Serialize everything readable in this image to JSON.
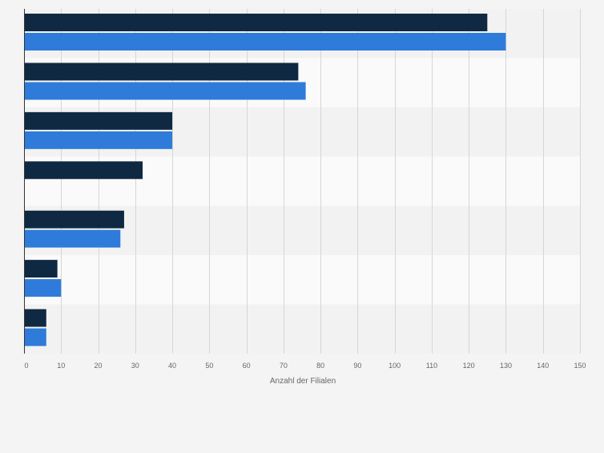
{
  "chart_data": {
    "type": "bar",
    "orientation": "horizontal",
    "categories": [
      "",
      "",
      "",
      "",
      "",
      "",
      ""
    ],
    "series": [
      {
        "color": "#0f2942",
        "values": [
          125,
          74,
          40,
          32,
          27,
          9,
          6
        ]
      },
      {
        "color": "#2f7bd9",
        "values": [
          130,
          76,
          40,
          null,
          26,
          10,
          6
        ]
      }
    ],
    "xlim": [
      0,
      150
    ],
    "xticks": [
      0,
      10,
      20,
      30,
      40,
      50,
      60,
      70,
      80,
      90,
      100,
      110,
      120,
      130,
      140,
      150
    ],
    "xlabel": "Anzahl der Filialen",
    "ylabel": "",
    "title": "",
    "grid": true,
    "legend": "none"
  },
  "colors": {
    "background": "#f4f4f4",
    "band_light": "#fafafa",
    "band_dark": "#f2f2f2",
    "grid": "#d6d6d6",
    "axis": "#333333",
    "tick_text": "#666666"
  }
}
